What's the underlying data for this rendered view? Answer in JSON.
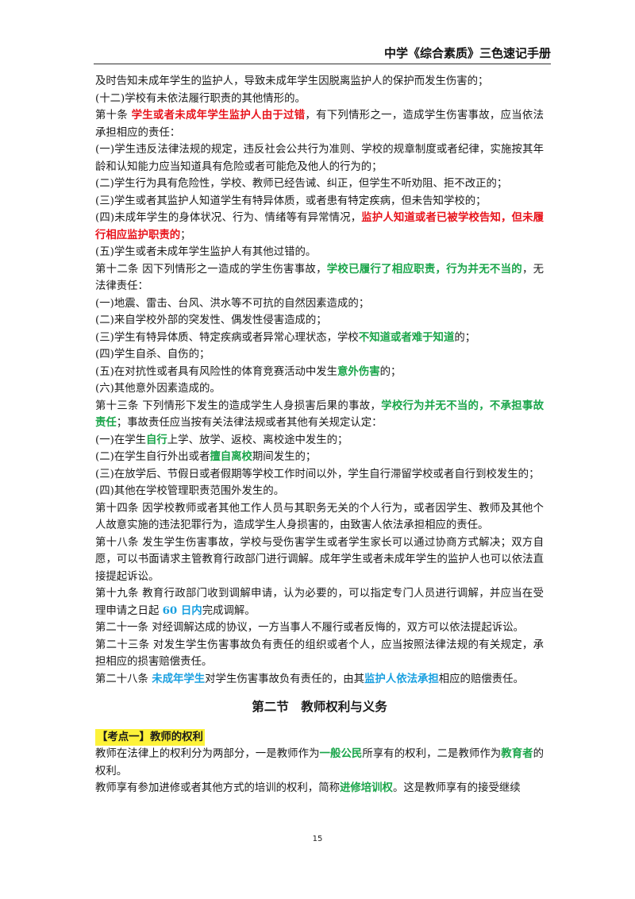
{
  "header": {
    "title": "中学《综合素质》三色速记手册"
  },
  "section": {
    "title": "第二节　教师权利与义务"
  },
  "kaodian": {
    "label": "【考点一】教师的权利"
  },
  "page_number": "15",
  "paragraphs": [
    [
      {
        "t": "及时告知未成年学生的监护人，导致未成年学生因脱离监护人的保护而发生伤害的；"
      }
    ],
    [
      {
        "t": "(十二)学校有未依法履行职责的其他情形的。"
      }
    ],
    [
      {
        "t": "第十条  "
      },
      {
        "t": "学生或者未成年学生监护人由于过错",
        "c": "red"
      },
      {
        "t": "，有下列情形之一，造成学生伤害事故，应当依法承担相应的责任："
      }
    ],
    [
      {
        "t": "(一)学生违反法律法规的规定，违反社会公共行为准则、学校的规章制度或者纪律，实施按其年龄和认知能力应当知道具有危险或者可能危及他人的行为的；"
      }
    ],
    [
      {
        "t": "(二)学生行为具有危险性，学校、教师已经告诫、纠正，但学生不听劝阻、拒不改正的；"
      }
    ],
    [
      {
        "t": "(三)学生或者其监护人知道学生有特异体质，或者患有特定疾病，但未告知学校的；"
      }
    ],
    [
      {
        "t": "(四)未成年学生的身体状况、行为、情绪等有异常情况，"
      },
      {
        "t": "监护人知道或者已被学校告知，但未履行相应监护职责的",
        "c": "red"
      },
      {
        "t": "；"
      }
    ],
    [
      {
        "t": "(五)学生或者未成年学生监护人有其他过错的。"
      }
    ],
    [
      {
        "t": "第十二条  因下列情形之一造成的学生伤害事故，"
      },
      {
        "t": "学校已履行了相应职责，行为并无不当的",
        "c": "green"
      },
      {
        "t": "，无法律责任："
      }
    ],
    [
      {
        "t": "(一)地震、雷击、台风、洪水等不可抗的自然因素造成的；"
      }
    ],
    [
      {
        "t": "(二)来自学校外部的突发性、偶发性侵害造成的；"
      }
    ],
    [
      {
        "t": "(三)学生有特异体质、特定疾病或者异常心理状态，学校"
      },
      {
        "t": "不知道或者难于知道",
        "c": "green"
      },
      {
        "t": "的；"
      }
    ],
    [
      {
        "t": "(四)学生自杀、自伤的；"
      }
    ],
    [
      {
        "t": "(五)在对抗性或者具有风险性的体育竞赛活动中发生"
      },
      {
        "t": "意外伤害",
        "c": "green"
      },
      {
        "t": "的；"
      }
    ],
    [
      {
        "t": "(六)其他意外因素造成的。"
      }
    ],
    [
      {
        "t": "第十三条  下列情形下发生的造成学生人身损害后果的事故，"
      },
      {
        "t": "学校行为并无不当的，不承担事故责任",
        "c": "green"
      },
      {
        "t": "；事故责任应当按有关法律法规或者其他有关规定认定："
      }
    ],
    [
      {
        "t": "(一)在学生"
      },
      {
        "t": "自行",
        "c": "green"
      },
      {
        "t": "上学、放学、返校、离校途中发生的；"
      }
    ],
    [
      {
        "t": "(二)在学生自行外出或者"
      },
      {
        "t": "擅自离校",
        "c": "green"
      },
      {
        "t": "期间发生的；"
      }
    ],
    [
      {
        "t": "(三)在放学后、节假日或者假期等学校工作时间以外，学生自行滞留学校或者自行到校发生的；"
      }
    ],
    [
      {
        "t": "(四)其他在学校管理职责范围外发生的。"
      }
    ],
    [
      {
        "t": "第十四条  因学校教师或者其他工作人员与其职务无关的个人行为，或者因学生、教师及其他个人故意实施的违法犯罪行为，造成学生人身损害的，由致害人依法承担相应的责任。"
      }
    ],
    [
      {
        "t": "第十八条  发生学生伤害事故，学校与受伤害学生或者学生家长可以通过协商方式解决；双方自愿，可以书面请求主管教育行政部门进行调解。成年学生或者未成年学生的监护人也可以依法直接提起诉讼。"
      }
    ],
    [
      {
        "t": "第十九条  教育行政部门收到调解申请，认为必要的，可以指定专门人员进行调解，并应当在受理申请之日起 "
      },
      {
        "t": "60 日内",
        "c": "blue"
      },
      {
        "t": "完成调解。"
      }
    ],
    [
      {
        "t": "第二十一条  对经调解达成的协议，一方当事人不履行或者反悔的，双方可以依法提起诉讼。"
      }
    ],
    [
      {
        "t": "第二十三条  对发生学生伤害事故负有责任的组织或者个人，应当按照法律法规的有关规定，承担相应的损害赔偿责任。"
      }
    ],
    [
      {
        "t": "第二十八条  "
      },
      {
        "t": "未成年学生",
        "c": "blue"
      },
      {
        "t": "对学生伤害事故负有责任的，由其"
      },
      {
        "t": "监护人依法承担",
        "c": "blue"
      },
      {
        "t": "相应的赔偿责任。"
      }
    ]
  ],
  "after_paragraphs": [
    [
      {
        "t": "教师在法律上的权利分为两部分，一是教师作为"
      },
      {
        "t": "一般公民",
        "c": "green"
      },
      {
        "t": "所享有的权利，二是教师作为"
      },
      {
        "t": "教育者",
        "c": "green"
      },
      {
        "t": "的权利。"
      }
    ],
    [
      {
        "t": "教师享有参加进修或者其他方式的培训的权利，简称"
      },
      {
        "t": "进修培训权",
        "c": "green"
      },
      {
        "t": "。这是教师享有的接受继续"
      }
    ]
  ]
}
